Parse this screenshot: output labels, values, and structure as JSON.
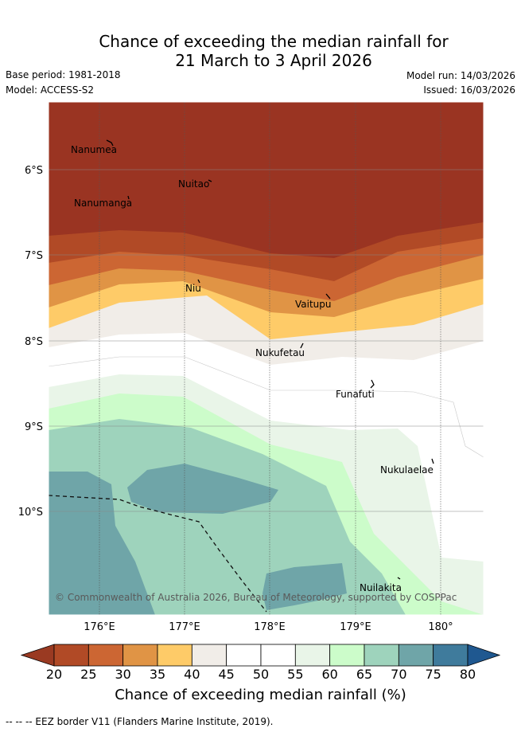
{
  "title_line1": "Chance of exceeding the median rainfall for",
  "title_line2": "21 March to 3 April 2026",
  "base_period": "Base period: 1981-2018",
  "model": "Model: ACCESS-S2",
  "model_run": "Model run: 14/03/2026",
  "issued": "Issued: 16/03/2026",
  "map": {
    "lat_labels": [
      "6°S",
      "7°S",
      "8°S",
      "9°S",
      "10°S"
    ],
    "lon_labels": [
      "176°E",
      "177°E",
      "178°E",
      "179°E",
      "180°"
    ],
    "places": [
      "Nanumea",
      "Nuitao",
      "Nanumanga",
      "Niu",
      "Vaitupu",
      "Nukufetau",
      "Funafuti",
      "Nukulaelae",
      "Nuilakita"
    ],
    "copyright": "© Commonwealth of Australia 2026, Bureau of Meteorology, supported by COSPPac"
  },
  "colorbar": {
    "ticks": [
      "20",
      "25",
      "30",
      "35",
      "40",
      "45",
      "50",
      "55",
      "60",
      "65",
      "70",
      "75",
      "80"
    ],
    "colors": [
      "#b14a26",
      "#cc6633",
      "#e09445",
      "#fecb68",
      "#f1ede8",
      "#ffffff",
      "#ffffff",
      "#e9f5e8",
      "#ccfcca",
      "#9ed3bc",
      "#6fa5a8",
      "#3f7b9c"
    ],
    "under_color": "#9a3a22",
    "over_color": "#1f5890",
    "label": "Chance of exceeding median rainfall (%)"
  },
  "footnote": "--  --  -- EEZ border V11 (Flanders Marine Institute, 2019)."
}
